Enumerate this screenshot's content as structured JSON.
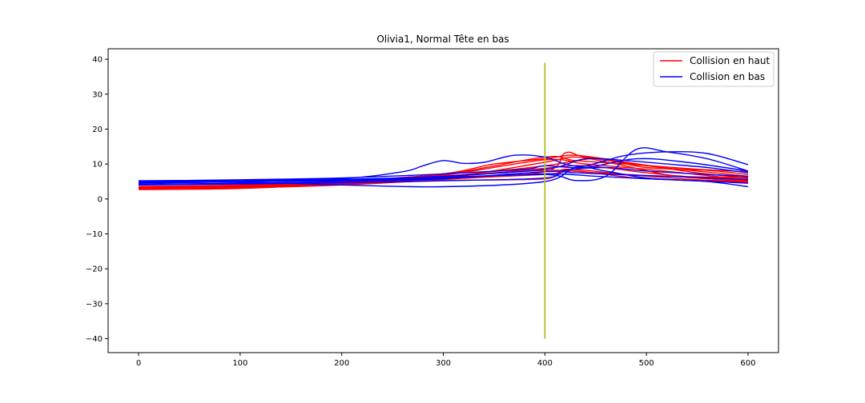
{
  "chart_data": {
    "type": "line",
    "title": "Olivia1, Normal Tête en bas",
    "xlabel": "",
    "ylabel": "",
    "xlim": [
      -30,
      630
    ],
    "ylim": [
      -44,
      43
    ],
    "xticks": [
      0,
      100,
      200,
      300,
      400,
      500,
      600
    ],
    "yticks": [
      40,
      30,
      20,
      10,
      0,
      -10,
      -20,
      -30,
      -40
    ],
    "xtick_labels": [
      "0",
      "100",
      "200",
      "300",
      "400",
      "500",
      "600"
    ],
    "ytick_labels": [
      "40",
      "30",
      "20",
      "10",
      "0",
      "−10",
      "−20",
      "−30",
      "−40"
    ],
    "grid": false,
    "legend_position": "top-right",
    "legend": [
      {
        "label": "Collision en haut",
        "color": "#ff0000"
      },
      {
        "label": "Collision en bas",
        "color": "#0000ff"
      }
    ],
    "vertical_marker": {
      "x": 400,
      "y0": -40,
      "y1": 39,
      "color": "#bcbd22"
    },
    "series": [
      {
        "group": "Collision en haut",
        "color": "#ff0000",
        "points": [
          [
            0,
            3.0
          ],
          [
            100,
            3.2
          ],
          [
            200,
            4.0
          ],
          [
            300,
            5.6
          ],
          [
            400,
            7.8
          ],
          [
            420,
            13.2
          ],
          [
            440,
            12.0
          ],
          [
            500,
            9.5
          ],
          [
            550,
            8.0
          ],
          [
            600,
            6.5
          ]
        ]
      },
      {
        "group": "Collision en haut",
        "color": "#ff0000",
        "points": [
          [
            0,
            2.7
          ],
          [
            100,
            3.0
          ],
          [
            200,
            4.3
          ],
          [
            300,
            6.0
          ],
          [
            400,
            10.5
          ],
          [
            430,
            12.0
          ],
          [
            470,
            10.0
          ],
          [
            530,
            6.5
          ],
          [
            600,
            5.2
          ]
        ]
      },
      {
        "group": "Collision en haut",
        "color": "#ff0000",
        "points": [
          [
            0,
            3.3
          ],
          [
            100,
            3.6
          ],
          [
            200,
            4.8
          ],
          [
            300,
            6.8
          ],
          [
            400,
            11.2
          ],
          [
            440,
            10.0
          ],
          [
            500,
            8.5
          ],
          [
            550,
            7.0
          ],
          [
            600,
            5.5
          ]
        ]
      },
      {
        "group": "Collision en haut",
        "color": "#ff0000",
        "points": [
          [
            0,
            3.5
          ],
          [
            100,
            3.8
          ],
          [
            200,
            5.0
          ],
          [
            300,
            7.2
          ],
          [
            350,
            10.0
          ],
          [
            400,
            11.5
          ],
          [
            430,
            12.5
          ],
          [
            480,
            10.5
          ],
          [
            550,
            7.5
          ],
          [
            600,
            6.0
          ]
        ]
      },
      {
        "group": "Collision en haut",
        "color": "#ff0000",
        "points": [
          [
            0,
            2.8
          ],
          [
            100,
            3.1
          ],
          [
            200,
            4.2
          ],
          [
            300,
            5.3
          ],
          [
            400,
            5.8
          ],
          [
            420,
            8.5
          ],
          [
            480,
            7.0
          ],
          [
            550,
            5.5
          ],
          [
            600,
            5.0
          ]
        ]
      },
      {
        "group": "Collision en haut",
        "color": "#ff0000",
        "points": [
          [
            0,
            3.1
          ],
          [
            100,
            3.4
          ],
          [
            200,
            4.6
          ],
          [
            300,
            6.2
          ],
          [
            400,
            8.8
          ],
          [
            440,
            9.5
          ],
          [
            500,
            7.5
          ],
          [
            550,
            6.2
          ],
          [
            600,
            5.8
          ]
        ]
      },
      {
        "group": "Collision en haut",
        "color": "#ff0000",
        "points": [
          [
            0,
            3.6
          ],
          [
            100,
            4.0
          ],
          [
            200,
            5.2
          ],
          [
            300,
            6.5
          ],
          [
            400,
            9.5
          ],
          [
            450,
            11.5
          ],
          [
            500,
            9.0
          ],
          [
            560,
            8.2
          ],
          [
            600,
            7.0
          ]
        ]
      },
      {
        "group": "Collision en haut",
        "color": "#ff0000",
        "points": [
          [
            0,
            2.9
          ],
          [
            100,
            3.3
          ],
          [
            200,
            4.4
          ],
          [
            300,
            5.8
          ],
          [
            400,
            7.0
          ],
          [
            430,
            8.0
          ],
          [
            490,
            6.0
          ],
          [
            550,
            5.2
          ],
          [
            600,
            4.8
          ]
        ]
      },
      {
        "group": "Collision en haut",
        "color": "#ff0000",
        "points": [
          [
            0,
            3.4
          ],
          [
            100,
            3.7
          ],
          [
            200,
            4.9
          ],
          [
            300,
            7.0
          ],
          [
            400,
            12.0
          ],
          [
            430,
            11.0
          ],
          [
            490,
            9.8
          ],
          [
            550,
            8.5
          ],
          [
            600,
            7.8
          ]
        ]
      },
      {
        "group": "Collision en haut",
        "color": "#ff0000",
        "points": [
          [
            0,
            3.2
          ],
          [
            100,
            3.5
          ],
          [
            200,
            4.7
          ],
          [
            300,
            6.4
          ],
          [
            400,
            8.2
          ],
          [
            450,
            7.5
          ],
          [
            520,
            6.5
          ],
          [
            600,
            6.2
          ]
        ]
      },
      {
        "group": "Collision en bas",
        "color": "#0000ff",
        "points": [
          [
            0,
            5.2
          ],
          [
            100,
            5.4
          ],
          [
            200,
            5.8
          ],
          [
            260,
            7.8
          ],
          [
            280,
            9.5
          ],
          [
            300,
            11.0
          ],
          [
            320,
            10.2
          ],
          [
            340,
            10.5
          ],
          [
            370,
            12.5
          ],
          [
            400,
            12.0
          ],
          [
            420,
            10.0
          ],
          [
            440,
            9.5
          ],
          [
            480,
            12.5
          ],
          [
            520,
            13.5
          ],
          [
            560,
            13.0
          ],
          [
            600,
            9.8
          ]
        ]
      },
      {
        "group": "Collision en bas",
        "color": "#0000ff",
        "points": [
          [
            0,
            4.8
          ],
          [
            100,
            5.2
          ],
          [
            200,
            5.5
          ],
          [
            300,
            6.2
          ],
          [
            400,
            7.0
          ],
          [
            430,
            5.3
          ],
          [
            460,
            6.5
          ],
          [
            490,
            14.2
          ],
          [
            520,
            13.5
          ],
          [
            560,
            11.5
          ],
          [
            600,
            8.0
          ]
        ]
      },
      {
        "group": "Collision en bas",
        "color": "#0000ff",
        "points": [
          [
            0,
            4.5
          ],
          [
            100,
            4.8
          ],
          [
            200,
            4.0
          ],
          [
            300,
            3.5
          ],
          [
            400,
            5.0
          ],
          [
            430,
            9.0
          ],
          [
            460,
            8.0
          ],
          [
            500,
            6.0
          ],
          [
            560,
            5.0
          ],
          [
            600,
            3.5
          ]
        ]
      },
      {
        "group": "Collision en bas",
        "color": "#0000ff",
        "points": [
          [
            0,
            5.0
          ],
          [
            100,
            5.3
          ],
          [
            200,
            5.6
          ],
          [
            300,
            6.5
          ],
          [
            400,
            8.5
          ],
          [
            440,
            11.5
          ],
          [
            480,
            11.0
          ],
          [
            520,
            10.0
          ],
          [
            560,
            9.0
          ],
          [
            600,
            7.5
          ]
        ]
      },
      {
        "group": "Collision en bas",
        "color": "#0000ff",
        "points": [
          [
            0,
            4.2
          ],
          [
            100,
            4.5
          ],
          [
            200,
            5.0
          ],
          [
            300,
            5.8
          ],
          [
            400,
            7.8
          ],
          [
            430,
            7.5
          ],
          [
            470,
            7.0
          ],
          [
            520,
            6.5
          ],
          [
            600,
            5.5
          ]
        ]
      },
      {
        "group": "Collision en bas",
        "color": "#0000ff",
        "points": [
          [
            0,
            4.0
          ],
          [
            100,
            4.3
          ],
          [
            200,
            4.6
          ],
          [
            300,
            5.2
          ],
          [
            400,
            6.0
          ],
          [
            420,
            8.2
          ],
          [
            460,
            9.0
          ],
          [
            500,
            8.0
          ],
          [
            560,
            7.0
          ],
          [
            600,
            6.5
          ]
        ]
      },
      {
        "group": "Collision en bas",
        "color": "#0000ff",
        "points": [
          [
            0,
            5.1
          ],
          [
            100,
            5.5
          ],
          [
            200,
            6.0
          ],
          [
            300,
            7.2
          ],
          [
            380,
            8.5
          ],
          [
            400,
            9.5
          ],
          [
            440,
            9.0
          ],
          [
            490,
            11.5
          ],
          [
            540,
            10.5
          ],
          [
            600,
            8.0
          ]
        ]
      },
      {
        "group": "Collision en bas",
        "color": "#0000ff",
        "points": [
          [
            0,
            4.6
          ],
          [
            100,
            4.9
          ],
          [
            200,
            5.3
          ],
          [
            300,
            6.0
          ],
          [
            400,
            7.2
          ],
          [
            450,
            6.5
          ],
          [
            500,
            5.8
          ],
          [
            550,
            5.2
          ],
          [
            600,
            4.5
          ]
        ]
      }
    ]
  }
}
